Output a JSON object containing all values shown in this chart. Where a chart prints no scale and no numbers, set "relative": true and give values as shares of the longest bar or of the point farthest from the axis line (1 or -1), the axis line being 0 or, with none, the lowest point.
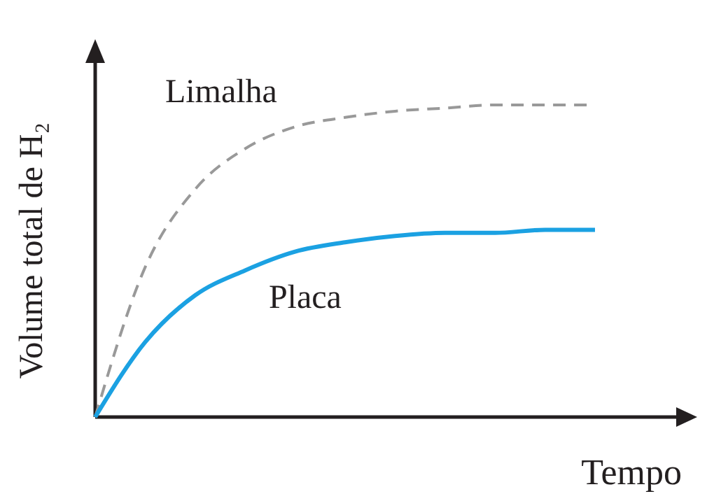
{
  "chart_data": {
    "type": "line",
    "relative": true,
    "xlabel": "Tempo",
    "ylabel": "Volume total de H₂",
    "categories": [
      null,
      null,
      null,
      null,
      null,
      null,
      null,
      null,
      null,
      null,
      null
    ],
    "series": [
      {
        "name": "Limalha",
        "color": "#999999",
        "line_style": "dashed",
        "values": [
          0,
          0.48,
          0.73,
          0.86,
          0.93,
          0.96,
          0.98,
          0.99,
          1,
          1,
          1
        ]
      },
      {
        "name": "Placa",
        "color": "#1ba1e2",
        "line_style": "solid",
        "values": [
          0,
          0.24,
          0.39,
          0.47,
          0.53,
          0.56,
          0.58,
          0.59,
          0.59,
          0.6,
          0.6
        ]
      }
    ]
  }
}
